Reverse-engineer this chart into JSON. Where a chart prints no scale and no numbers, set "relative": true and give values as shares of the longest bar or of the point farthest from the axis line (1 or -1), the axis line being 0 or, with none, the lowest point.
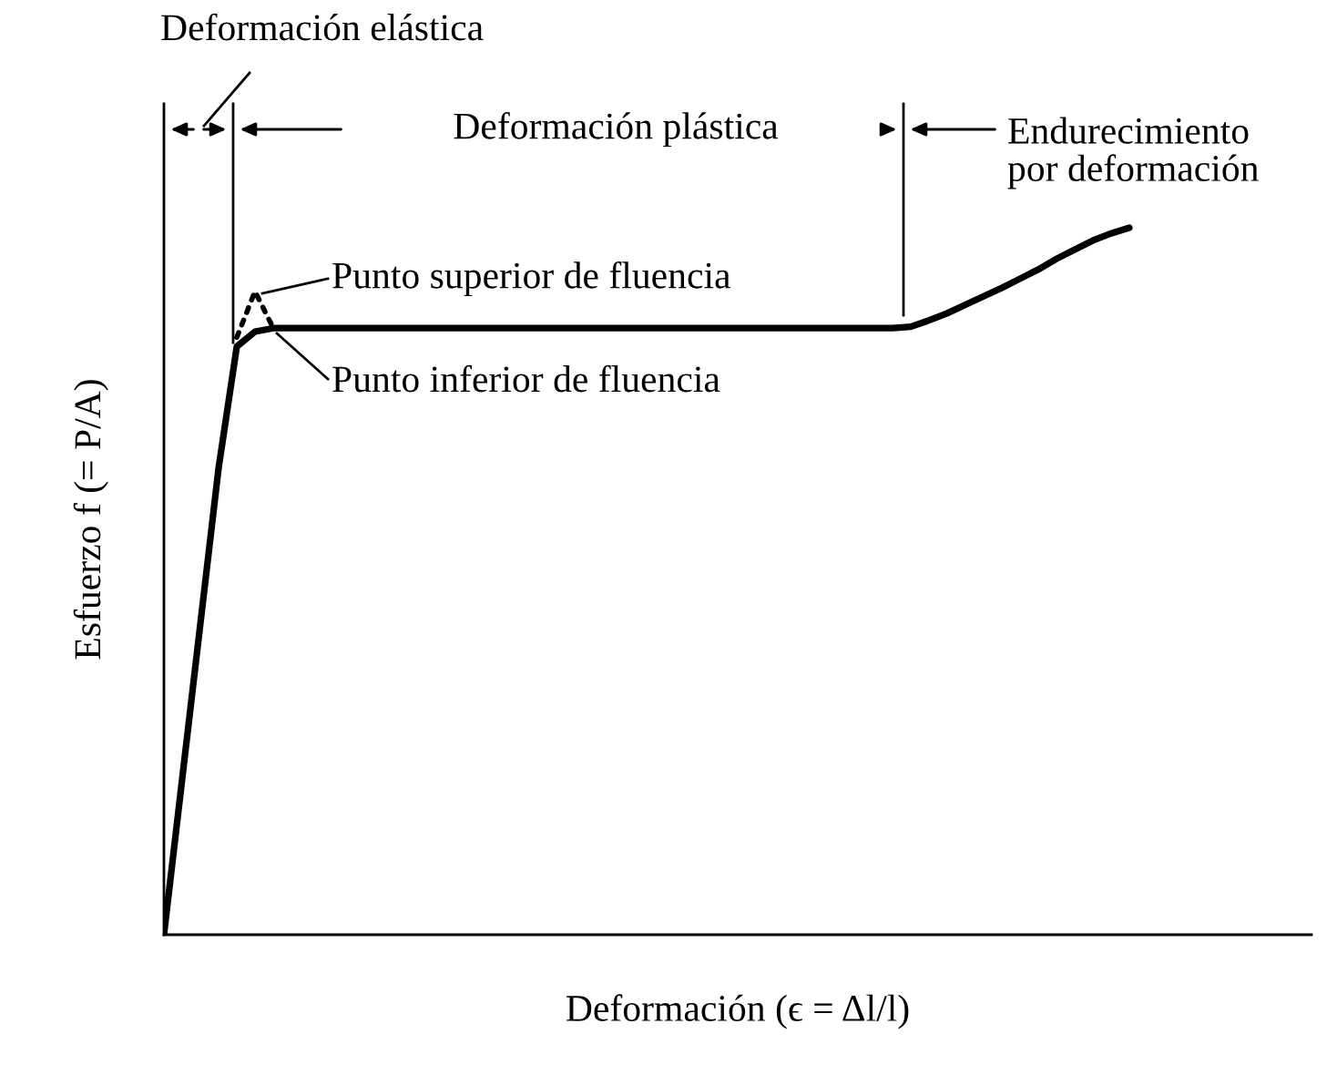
{
  "chart_data": {
    "type": "line",
    "relative": true,
    "xlabel": "Deformación (ϵ = Δl/l)",
    "ylabel": "Esfuerzo f (= P/A)",
    "annotations": [
      "Deformación elástica",
      "Deformación plástica",
      "Endurecimiento\npor deformación",
      "Punto superior de fluencia",
      "Punto inferior de fluencia"
    ],
    "categories": [
      null,
      null,
      null,
      null,
      null,
      null,
      null,
      null,
      null,
      null,
      null,
      null,
      null,
      null,
      null,
      null,
      null,
      null,
      null,
      null,
      null,
      null,
      null,
      null,
      null,
      null,
      null,
      null,
      null,
      null,
      null,
      null,
      null,
      null,
      null,
      null,
      null,
      null,
      null,
      null,
      null,
      null,
      null,
      null,
      null,
      null,
      null,
      null,
      null,
      null,
      null,
      null,
      null,
      null,
      null,
      null,
      null,
      null,
      null,
      null,
      null,
      null,
      null,
      null
    ],
    "series": [
      {
        "color": "#000000",
        "line_style": "solid",
        "values": [
          0,
          0.22,
          0.44,
          0.66,
          0.832,
          0.853,
          0.858,
          0.858,
          0.858,
          0.858,
          0.858,
          0.858,
          0.858,
          0.858,
          0.858,
          0.858,
          0.858,
          0.858,
          0.858,
          0.858,
          0.858,
          0.858,
          0.858,
          0.858,
          0.858,
          0.858,
          0.858,
          0.858,
          0.858,
          0.858,
          0.858,
          0.858,
          0.858,
          0.858,
          0.858,
          0.858,
          0.858,
          0.858,
          0.858,
          0.858,
          0.858,
          0.86,
          0.869,
          0.879,
          0.891,
          0.903,
          0.915,
          0.928,
          0.941,
          0.956,
          0.969,
          0.982,
          0.992,
          1.0,
          null,
          null,
          null,
          null,
          null,
          null,
          null,
          null,
          null,
          null
        ]
      },
      {
        "color": "#000000",
        "line_style": "dotted",
        "values": [
          null,
          null,
          null,
          null,
          0.845,
          0.91,
          0.858,
          null,
          null,
          null,
          null,
          null,
          null,
          null,
          null,
          null,
          null,
          null,
          null,
          null,
          null,
          null,
          null,
          null,
          null,
          null,
          null,
          null,
          null,
          null,
          null,
          null,
          null,
          null,
          null,
          null,
          null,
          null,
          null,
          null,
          null,
          null,
          null,
          null,
          null,
          null,
          null,
          null,
          null,
          null,
          null,
          null,
          null,
          null,
          null,
          null,
          null,
          null,
          null,
          null,
          null,
          null,
          null,
          null
        ]
      }
    ]
  }
}
